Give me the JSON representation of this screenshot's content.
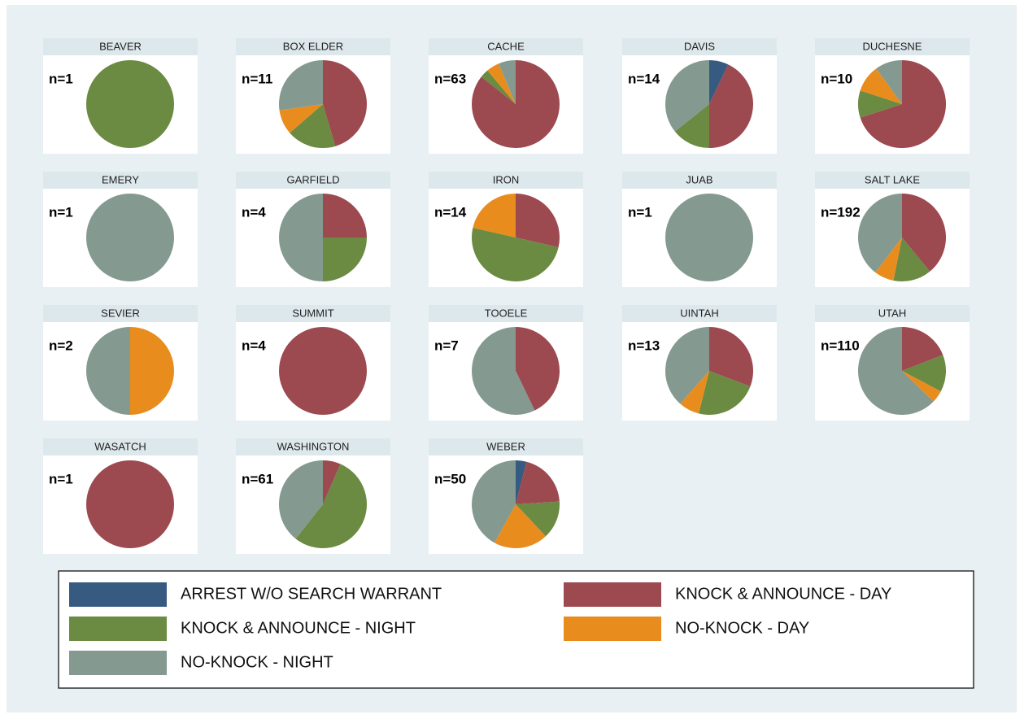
{
  "chart_data": {
    "type": "pie",
    "legend": [
      {
        "name": "ARREST W/O SEARCH WARRANT",
        "color": "#365a80"
      },
      {
        "name": "KNOCK & ANNOUNCE - DAY",
        "color": "#9c4950"
      },
      {
        "name": "KNOCK & ANNOUNCE - NIGHT",
        "color": "#6b8a42"
      },
      {
        "name": "NO-KNOCK - DAY",
        "color": "#e98c1e"
      },
      {
        "name": "NO-KNOCK - NIGHT",
        "color": "#84998f"
      }
    ],
    "panels": [
      {
        "title": "BEAVER",
        "label": "n=1",
        "values": [
          0,
          0,
          1,
          0,
          0
        ]
      },
      {
        "title": "BOX ELDER",
        "label": "n=11",
        "values": [
          0,
          5,
          2,
          1,
          3
        ]
      },
      {
        "title": "CACHE",
        "label": "n=63",
        "values": [
          0,
          54,
          2,
          3,
          4
        ]
      },
      {
        "title": "DAVIS",
        "label": "n=14",
        "values": [
          1,
          6,
          2,
          0,
          5
        ]
      },
      {
        "title": "DUCHESNE",
        "label": "n=10",
        "values": [
          0,
          7,
          1,
          1,
          1
        ]
      },
      {
        "title": "EMERY",
        "label": "n=1",
        "values": [
          0,
          0,
          0,
          0,
          1
        ]
      },
      {
        "title": "GARFIELD",
        "label": "n=4",
        "values": [
          0,
          1,
          1,
          0,
          2
        ]
      },
      {
        "title": "IRON",
        "label": "n=14",
        "values": [
          0,
          4,
          7,
          3,
          0
        ]
      },
      {
        "title": "JUAB",
        "label": "n=1",
        "values": [
          0,
          0,
          0,
          0,
          1
        ]
      },
      {
        "title": "SALT LAKE",
        "label": "n=192",
        "values": [
          0,
          75,
          27,
          14,
          76
        ]
      },
      {
        "title": "SEVIER",
        "label": "n=2",
        "values": [
          0,
          0,
          0,
          1,
          1
        ]
      },
      {
        "title": "SUMMIT",
        "label": "n=4",
        "values": [
          0,
          4,
          0,
          0,
          0
        ]
      },
      {
        "title": "TOOELE",
        "label": "n=7",
        "values": [
          0,
          3,
          0,
          0,
          4
        ]
      },
      {
        "title": "UINTAH",
        "label": "n=13",
        "values": [
          0,
          4,
          3,
          1,
          5
        ]
      },
      {
        "title": "UTAH",
        "label": "n=110",
        "values": [
          0,
          21,
          15,
          5,
          69
        ]
      },
      {
        "title": "WASATCH",
        "label": "n=1",
        "values": [
          0,
          1,
          0,
          0,
          0
        ]
      },
      {
        "title": "WASHINGTON",
        "label": "n=61",
        "values": [
          0,
          4,
          33,
          0,
          24
        ]
      },
      {
        "title": "WEBER",
        "label": "n=50",
        "values": [
          2,
          10,
          7,
          10,
          21
        ]
      }
    ]
  }
}
